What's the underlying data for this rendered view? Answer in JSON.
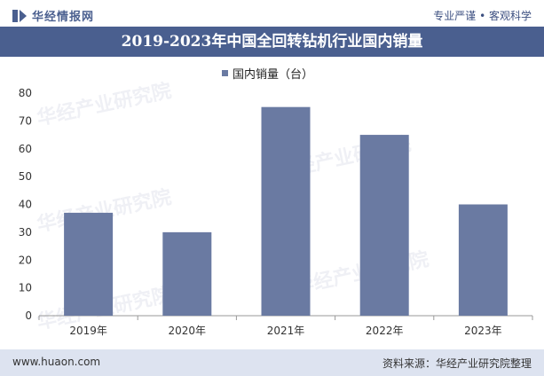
{
  "header": {
    "logo_text": "华经情报网",
    "slogan": "专业严谨 • 客观科学"
  },
  "watermark": "华经产业研究院",
  "chart_data": {
    "type": "bar",
    "title": "2019-2023年中国全回转钻机行业国内销量",
    "categories": [
      "2019年",
      "2020年",
      "2021年",
      "2022年",
      "2023年"
    ],
    "series": [
      {
        "name": "国内销量（台）",
        "values": [
          37,
          30,
          75,
          65,
          40
        ]
      }
    ],
    "ylim": [
      0,
      80
    ],
    "yticks": [
      0,
      10,
      20,
      30,
      40,
      50,
      60,
      70,
      80
    ],
    "xlabel": "",
    "ylabel": "",
    "legend_position": "top-center",
    "bar_color": "#6a7aa2",
    "grid": false
  },
  "footer": {
    "website": "www.huaon.com",
    "source": "资料来源：华经产业研究院整理"
  }
}
